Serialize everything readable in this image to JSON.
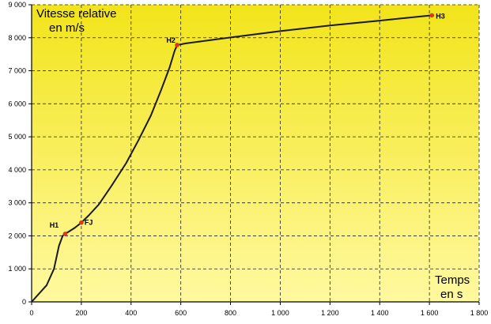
{
  "chart_data": {
    "type": "line",
    "title": "",
    "ylabel": "Vitesse relative en m/s",
    "ylabel_lines": [
      "Vitesse relative",
      "en m/s"
    ],
    "xlabel": "Temps en s",
    "xlabel_lines": [
      "Temps",
      "en s"
    ],
    "xlim": [
      0,
      1800
    ],
    "ylim": [
      0,
      9000
    ],
    "grid": true,
    "x_ticks": [
      0,
      200,
      400,
      600,
      800,
      1000,
      1200,
      1400,
      1600,
      1800
    ],
    "y_ticks": [
      0,
      1000,
      2000,
      3000,
      4000,
      5000,
      6000,
      7000,
      8000,
      9000
    ],
    "x_tick_labels": [
      "0",
      "200",
      "400",
      "600",
      "800",
      "1 000",
      "1 200",
      "1 400",
      "1 600",
      "1 800"
    ],
    "y_tick_labels": [
      "0",
      "1 000",
      "2 000",
      "3 000",
      "4 000",
      "5 000",
      "6 000",
      "7 000",
      "8 000",
      "9 000"
    ],
    "colors": {
      "background_top": "#f2e41a",
      "background_bottom": "#fff9a0",
      "line": "#1a1a1a",
      "marker": "#d83a1e"
    },
    "series": [
      {
        "x": [
          0,
          30,
          60,
          90,
          110,
          125,
          135,
          150,
          175,
          200,
          230,
          270,
          320,
          380,
          430,
          480,
          520,
          555,
          575,
          585,
          620,
          800,
          1000,
          1200,
          1400,
          1610
        ],
        "y": [
          0,
          250,
          500,
          1000,
          1700,
          2000,
          2060,
          2130,
          2250,
          2400,
          2620,
          2950,
          3500,
          4200,
          4900,
          5650,
          6400,
          7100,
          7600,
          7780,
          7830,
          8010,
          8200,
          8370,
          8520,
          8680
        ]
      }
    ],
    "points": [
      {
        "label": "H1",
        "x": 135,
        "y": 2060
      },
      {
        "label": "FJ",
        "x": 200,
        "y": 2400
      },
      {
        "label": "H2",
        "x": 585,
        "y": 7780
      },
      {
        "label": "H3",
        "x": 1610,
        "y": 8680
      }
    ]
  }
}
